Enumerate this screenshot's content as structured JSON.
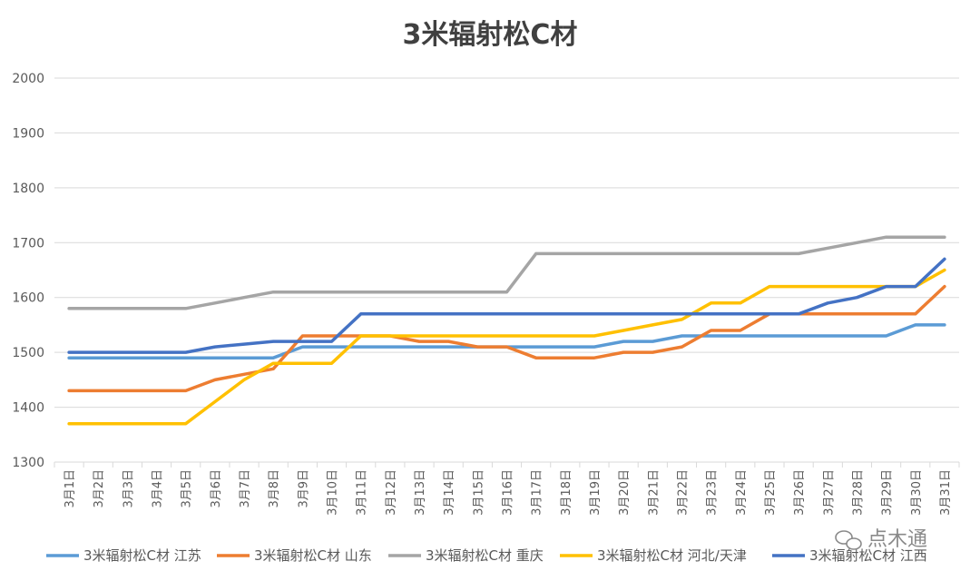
{
  "chart_data": {
    "type": "line",
    "title": "3米辐射松C材",
    "xlabel": "",
    "ylabel": "",
    "ylim": [
      1300,
      2000
    ],
    "yticks": [
      1300,
      1400,
      1500,
      1600,
      1700,
      1800,
      1900,
      2000
    ],
    "grid": true,
    "legend_position": "bottom",
    "categories": [
      "3月1日",
      "3月2日",
      "3月3日",
      "3月4日",
      "3月5日",
      "3月6日",
      "3月7日",
      "3月8日",
      "3月9日",
      "3月10日",
      "3月11日",
      "3月12日",
      "3月13日",
      "3月14日",
      "3月15日",
      "3月16日",
      "3月17日",
      "3月18日",
      "3月19日",
      "3月20日",
      "3月21日",
      "3月22日",
      "3月23日",
      "3月24日",
      "3月25日",
      "3月26日",
      "3月27日",
      "3月28日",
      "3月29日",
      "3月30日",
      "3月31日"
    ],
    "series": [
      {
        "name": "3米辐射松C材 江苏",
        "color": "#5B9BD5",
        "values": [
          1490,
          1490,
          1490,
          1490,
          1490,
          1490,
          1490,
          1490,
          1510,
          1510,
          1510,
          1510,
          1510,
          1510,
          1510,
          1510,
          1510,
          1510,
          1510,
          1520,
          1520,
          1530,
          1530,
          1530,
          1530,
          1530,
          1530,
          1530,
          1530,
          1550,
          1550
        ]
      },
      {
        "name": "3米辐射松C材 山东",
        "color": "#ED7D31",
        "values": [
          1430,
          1430,
          1430,
          1430,
          1430,
          1450,
          1460,
          1470,
          1530,
          1530,
          1530,
          1530,
          1520,
          1520,
          1510,
          1510,
          1490,
          1490,
          1490,
          1500,
          1500,
          1510,
          1540,
          1540,
          1570,
          1570,
          1570,
          1570,
          1570,
          1570,
          1620
        ]
      },
      {
        "name": "3米辐射松C材 重庆",
        "color": "#A5A5A5",
        "values": [
          1580,
          1580,
          1580,
          1580,
          1580,
          1590,
          1600,
          1610,
          1610,
          1610,
          1610,
          1610,
          1610,
          1610,
          1610,
          1610,
          1680,
          1680,
          1680,
          1680,
          1680,
          1680,
          1680,
          1680,
          1680,
          1680,
          1690,
          1700,
          1710,
          1710,
          1710
        ]
      },
      {
        "name": "3米辐射松C材 河北/天津",
        "color": "#FFC000",
        "values": [
          1370,
          1370,
          1370,
          1370,
          1370,
          1410,
          1450,
          1480,
          1480,
          1480,
          1530,
          1530,
          1530,
          1530,
          1530,
          1530,
          1530,
          1530,
          1530,
          1540,
          1550,
          1560,
          1590,
          1590,
          1620,
          1620,
          1620,
          1620,
          1620,
          1620,
          1650
        ]
      },
      {
        "name": "3米辐射松C材 江西",
        "color": "#4472C4",
        "values": [
          1500,
          1500,
          1500,
          1500,
          1500,
          1510,
          1515,
          1520,
          1520,
          1520,
          1570,
          1570,
          1570,
          1570,
          1570,
          1570,
          1570,
          1570,
          1570,
          1570,
          1570,
          1570,
          1570,
          1570,
          1570,
          1570,
          1590,
          1600,
          1620,
          1620,
          1670
        ]
      }
    ]
  },
  "watermark": {
    "text": "点木通",
    "icon": "wechat-icon"
  }
}
